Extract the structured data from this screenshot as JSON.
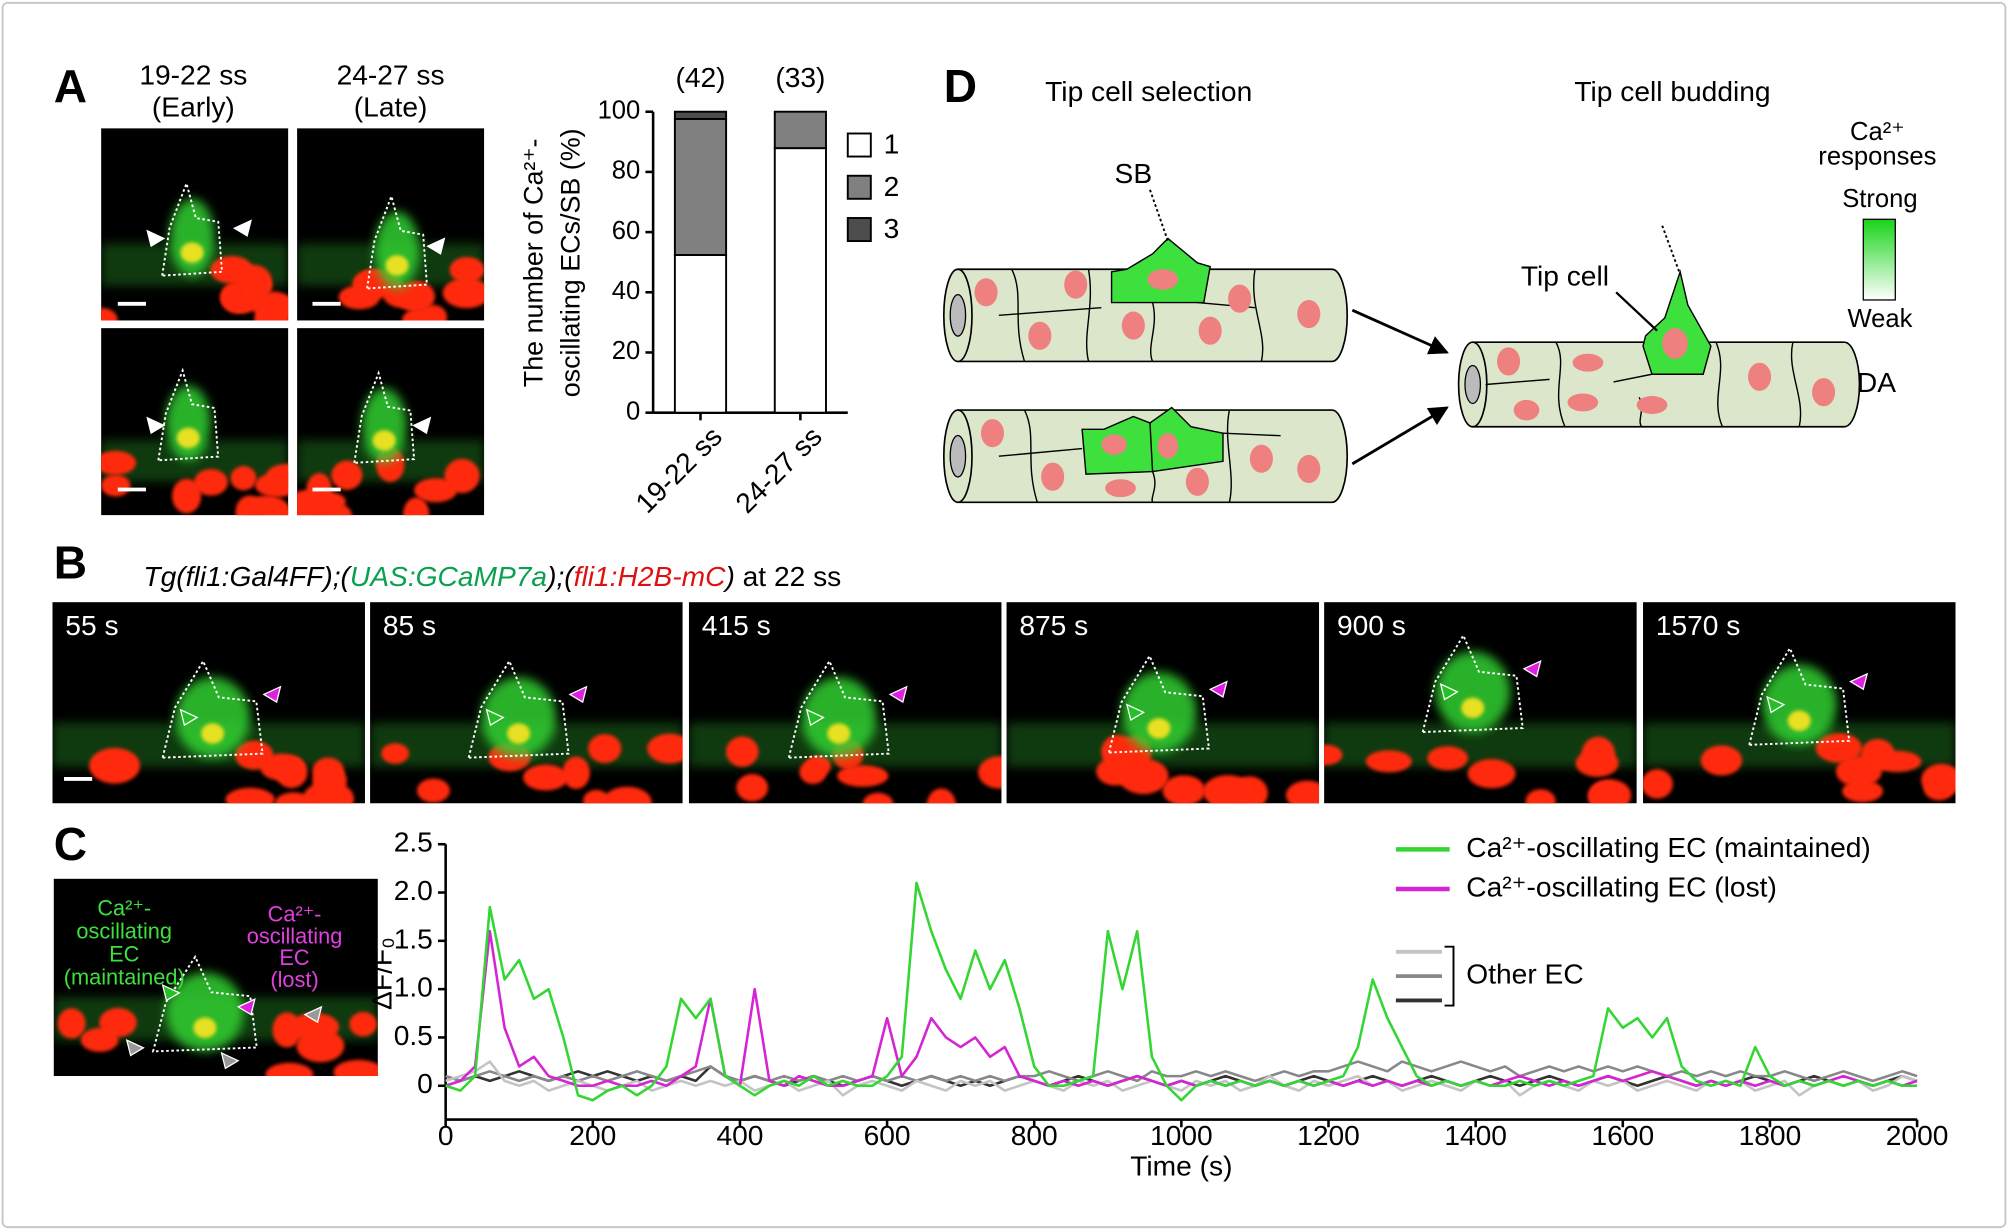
{
  "panel_labels": {
    "A": "A",
    "B": "B",
    "C": "C",
    "D": "D"
  },
  "panel_a": {
    "columns": [
      [
        "19-22 ss",
        "(Early)"
      ],
      [
        "24-27 ss",
        "(Late)"
      ]
    ]
  },
  "panel_b": {
    "caption": [
      "Tg(fli1:Gal4FF);(",
      "UAS:GCaMP7a",
      ");(",
      "fli1:H2B-mC",
      ")",
      " at 22 ss"
    ],
    "frames": [
      "55 s",
      "85 s",
      "415 s",
      "875 s",
      "900 s",
      "1570 s"
    ]
  },
  "panel_c": {
    "maintained_label": [
      "Ca²⁺-",
      "oscillating",
      "EC",
      "(maintained)"
    ],
    "lost_label": [
      "Ca²⁺-",
      "oscillating",
      "EC",
      "(lost)"
    ]
  },
  "panel_d": {
    "stages": [
      "Tip cell selection",
      "Tip cell budding"
    ],
    "labels": {
      "sb": "SB",
      "tip_cell": "Tip cell",
      "da": "DA"
    },
    "legend": {
      "title": [
        "Ca²⁺",
        "responses"
      ],
      "high": "Strong",
      "low": "Weak"
    }
  },
  "chart_data": [
    {
      "type": "bar",
      "stacked": true,
      "ylabel": [
        "The number of Ca²⁺-",
        "oscillating ECs/SB (%)"
      ],
      "categories": [
        "19-22 ss",
        "24-27 ss"
      ],
      "annotations": [
        "(42)",
        "(33)"
      ],
      "series": [
        {
          "name": "1",
          "color": "#ffffff",
          "values": [
            52.4,
            87.9
          ]
        },
        {
          "name": "2",
          "color": "#808080",
          "values": [
            45.2,
            12.1
          ]
        },
        {
          "name": "3",
          "color": "#4d4d4d",
          "values": [
            2.4,
            0
          ]
        }
      ],
      "ylim": [
        0,
        100
      ],
      "yticks": [
        0,
        20,
        40,
        60,
        80,
        100
      ]
    },
    {
      "type": "line",
      "xlabel": "Time (s)",
      "ylabel": "ΔF/F₀",
      "legend_group": "Other EC",
      "x": [
        0,
        20,
        40,
        60,
        80,
        100,
        120,
        140,
        160,
        180,
        200,
        220,
        240,
        260,
        280,
        300,
        320,
        340,
        360,
        380,
        400,
        420,
        440,
        460,
        480,
        500,
        520,
        540,
        560,
        580,
        600,
        620,
        640,
        660,
        680,
        700,
        720,
        740,
        760,
        780,
        800,
        820,
        840,
        860,
        880,
        900,
        920,
        940,
        960,
        980,
        1000,
        1020,
        1040,
        1060,
        1080,
        1100,
        1120,
        1140,
        1160,
        1180,
        1200,
        1220,
        1240,
        1260,
        1280,
        1300,
        1320,
        1340,
        1360,
        1380,
        1400,
        1420,
        1440,
        1460,
        1480,
        1500,
        1520,
        1540,
        1560,
        1580,
        1600,
        1620,
        1640,
        1660,
        1680,
        1700,
        1720,
        1740,
        1760,
        1780,
        1800,
        1820,
        1840,
        1860,
        1880,
        1900,
        1920,
        1940,
        1960,
        1980,
        2000
      ],
      "series": [
        {
          "name": "Ca²⁺-oscillating EC (maintained)",
          "color": "#33d633",
          "values": [
            0.0,
            -0.05,
            0.1,
            1.85,
            1.1,
            1.3,
            0.9,
            1.0,
            0.5,
            -0.1,
            -0.15,
            -0.05,
            0.0,
            -0.1,
            0.0,
            0.2,
            0.9,
            0.7,
            0.9,
            0.1,
            0.0,
            -0.1,
            0.0,
            0.05,
            0.0,
            0.1,
            0.0,
            0.05,
            0.0,
            0.0,
            0.1,
            0.3,
            2.1,
            1.6,
            1.2,
            0.9,
            1.4,
            1.0,
            1.3,
            0.8,
            0.2,
            0.0,
            0.0,
            0.05,
            0.1,
            1.6,
            1.0,
            1.6,
            0.3,
            0.0,
            -0.15,
            0.0,
            0.05,
            0.0,
            0.05,
            0.0,
            0.05,
            0.0,
            0.05,
            0.0,
            0.05,
            0.1,
            0.4,
            1.1,
            0.7,
            0.4,
            0.1,
            0.0,
            0.05,
            0.0,
            0.05,
            0.0,
            0.0,
            0.05,
            0.0,
            0.05,
            0.0,
            0.05,
            0.1,
            0.8,
            0.6,
            0.7,
            0.5,
            0.7,
            0.2,
            0.05,
            0.0,
            0.05,
            0.0,
            0.4,
            0.1,
            0.0,
            0.05,
            0.0,
            0.05,
            0.0,
            0.05,
            0.0,
            0.05,
            0.0,
            0.0
          ]
        },
        {
          "name": "Ca²⁺-oscillating EC (lost)",
          "color": "#d424d4",
          "values": [
            0.0,
            0.05,
            0.2,
            1.6,
            0.6,
            0.2,
            0.3,
            0.1,
            0.05,
            0.0,
            0.0,
            0.05,
            0.0,
            0.0,
            0.05,
            0.0,
            0.1,
            0.2,
            0.9,
            0.1,
            0.0,
            1.0,
            0.05,
            0.0,
            0.1,
            0.05,
            0.0,
            0.0,
            0.05,
            0.1,
            0.7,
            0.1,
            0.3,
            0.7,
            0.5,
            0.4,
            0.5,
            0.3,
            0.4,
            0.1,
            0.05,
            0.0,
            0.05,
            0.0,
            0.05,
            0.0,
            0.05,
            0.1,
            0.05,
            0.0,
            0.05,
            0.0,
            0.05,
            0.0,
            0.05,
            0.0,
            0.05,
            0.0,
            0.05,
            0.0,
            0.05,
            0.0,
            0.05,
            0.0,
            0.05,
            0.0,
            0.05,
            0.0,
            0.05,
            0.0,
            0.05,
            0.0,
            0.05,
            0.1,
            0.05,
            0.0,
            0.05,
            0.0,
            0.05,
            0.1,
            0.05,
            0.1,
            0.15,
            0.1,
            0.05,
            0.0,
            0.05,
            0.0,
            0.05,
            0.0,
            0.05,
            0.0,
            0.05,
            0.0,
            0.05,
            0.1,
            0.05,
            0.0,
            0.05,
            0.0,
            0.05
          ]
        },
        {
          "name": null,
          "color": "#c4c4c4",
          "values": [
            0.05,
            0.1,
            0.15,
            0.25,
            0.05,
            0.0,
            0.05,
            -0.05,
            0.0,
            0.05,
            0.0,
            -0.05,
            0.0,
            0.05,
            -0.05,
            0.0,
            0.05,
            0.0,
            0.05,
            0.0,
            0.05,
            -0.05,
            0.0,
            0.05,
            -0.05,
            0.0,
            0.05,
            -0.1,
            0.0,
            0.05,
            0.0,
            -0.05,
            0.05,
            0.0,
            -0.05,
            0.05,
            0.0,
            0.05,
            -0.05,
            0.0,
            0.05,
            0.0,
            -0.05,
            0.05,
            0.0,
            0.05,
            -0.05,
            0.0,
            0.05,
            0.0,
            -0.05,
            0.05,
            0.0,
            0.05,
            -0.05,
            0.0,
            0.1,
            0.0,
            -0.05,
            0.05,
            0.0,
            0.05,
            0.1,
            0.0,
            0.05,
            -0.05,
            0.0,
            0.05,
            0.0,
            -0.05,
            0.05,
            0.0,
            0.05,
            -0.1,
            0.0,
            0.05,
            0.0,
            -0.05,
            0.05,
            0.0,
            0.05,
            -0.05,
            0.0,
            0.05,
            0.0,
            -0.05,
            0.05,
            0.0,
            0.05,
            -0.05,
            0.0,
            0.05,
            -0.1,
            0.0,
            0.05,
            0.0,
            0.05,
            -0.05,
            0.0,
            0.1,
            0.05
          ]
        },
        {
          "name": null,
          "color": "#888888",
          "values": [
            0.1,
            0.05,
            0.1,
            0.15,
            0.1,
            0.05,
            0.1,
            0.05,
            0.1,
            0.05,
            0.1,
            0.05,
            0.1,
            0.15,
            0.1,
            0.05,
            0.1,
            0.15,
            0.2,
            0.1,
            0.05,
            0.1,
            0.05,
            0.1,
            0.05,
            0.1,
            0.05,
            0.1,
            0.05,
            0.1,
            0.05,
            0.1,
            0.05,
            0.1,
            0.05,
            0.1,
            0.05,
            0.1,
            0.05,
            0.1,
            0.1,
            0.15,
            0.1,
            0.05,
            0.1,
            0.15,
            0.1,
            0.05,
            0.15,
            0.1,
            0.1,
            0.15,
            0.1,
            0.15,
            0.1,
            0.05,
            0.1,
            0.15,
            0.1,
            0.15,
            0.15,
            0.2,
            0.25,
            0.2,
            0.15,
            0.25,
            0.2,
            0.15,
            0.2,
            0.25,
            0.2,
            0.15,
            0.2,
            0.1,
            0.15,
            0.2,
            0.15,
            0.2,
            0.15,
            0.2,
            0.15,
            0.2,
            0.15,
            0.1,
            0.15,
            0.1,
            0.15,
            0.1,
            0.15,
            0.1,
            0.1,
            0.15,
            0.1,
            0.05,
            0.1,
            0.15,
            0.1,
            0.05,
            0.1,
            0.15,
            0.1
          ]
        },
        {
          "name": null,
          "color": "#333333",
          "values": [
            0.1,
            0.05,
            0.1,
            0.05,
            0.1,
            0.15,
            0.1,
            0.05,
            0.1,
            0.15,
            0.1,
            0.15,
            0.1,
            0.05,
            0.1,
            0.05,
            0.1,
            0.05,
            0.2,
            0.1,
            0.05,
            0.1,
            0.05,
            0.0,
            0.05,
            0.1,
            0.05,
            0.0,
            0.05,
            0.1,
            0.05,
            0.0,
            0.05,
            0.1,
            0.05,
            0.0,
            0.05,
            0.0,
            0.05,
            0.1,
            0.05,
            0.0,
            0.05,
            0.1,
            0.05,
            0.0,
            0.05,
            0.1,
            0.05,
            0.0,
            0.05,
            0.0,
            0.05,
            0.1,
            0.05,
            0.0,
            0.05,
            0.0,
            0.05,
            0.1,
            0.05,
            0.0,
            0.05,
            0.1,
            0.05,
            0.0,
            0.05,
            0.1,
            0.05,
            0.0,
            0.05,
            0.1,
            0.05,
            0.0,
            0.05,
            0.1,
            0.05,
            0.0,
            0.05,
            0.1,
            0.05,
            0.0,
            0.05,
            0.1,
            0.05,
            0.0,
            0.05,
            0.0,
            0.05,
            0.1,
            0.05,
            0.0,
            0.05,
            0.1,
            0.05,
            0.0,
            0.05,
            0.0,
            0.05,
            0.1,
            0.05
          ]
        }
      ],
      "xlim": [
        0,
        2000
      ],
      "xticks": [
        0,
        200,
        400,
        600,
        800,
        1000,
        1200,
        1400,
        1600,
        1800,
        2000
      ],
      "ylim": [
        -0.35,
        2.5
      ],
      "yticks": [
        0,
        0.5,
        {
          "value": 1,
          "label": "1.0"
        },
        1.5,
        {
          "value": 2,
          "label": "2.0"
        },
        2.5
      ]
    }
  ]
}
